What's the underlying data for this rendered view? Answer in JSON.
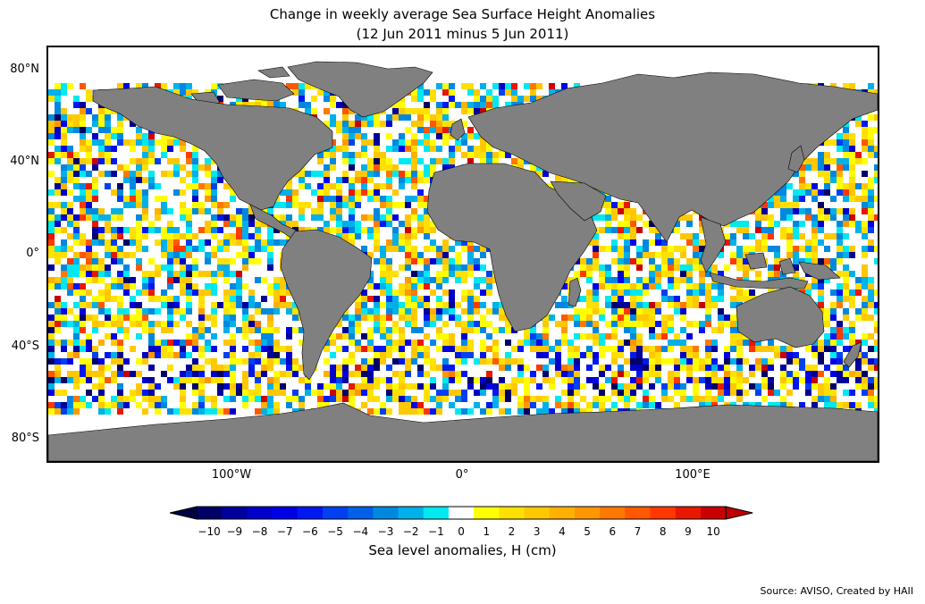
{
  "title": {
    "line1": "Change in weekly average Sea Surface Height Anomalies",
    "line2": "(12 Jun 2011 minus 5 Jun 2011)"
  },
  "axes": {
    "lat_labels": [
      "80°N",
      "40°N",
      "0°",
      "40°S",
      "80°S"
    ],
    "lon_labels": [
      "100°W",
      "0°",
      "100°E"
    ]
  },
  "colorbar": {
    "label": "Sea level anomalies, H (cm)",
    "ticks": [
      "−10",
      "−9",
      "−8",
      "−7",
      "−6",
      "−5",
      "−4",
      "−3",
      "−2",
      "−1",
      "0",
      "1",
      "2",
      "3",
      "4",
      "5",
      "6",
      "7",
      "8",
      "9",
      "10"
    ],
    "colors": [
      "#000066",
      "#00009a",
      "#0000c8",
      "#0000e6",
      "#0018f0",
      "#0040f0",
      "#0060e8",
      "#0088e0",
      "#00b0e8",
      "#00e8f0",
      "#ffffff",
      "#ffff00",
      "#ffe000",
      "#ffc800",
      "#ffb000",
      "#ff9800",
      "#ff7800",
      "#ff5800",
      "#ff3800",
      "#e81800",
      "#c80000"
    ],
    "under_color": "#000044",
    "over_color": "#c00000"
  },
  "colors": {
    "land": "#808080",
    "ocean_white": "#ffffff"
  },
  "source": "Source: AVISO, Created by HAII"
}
